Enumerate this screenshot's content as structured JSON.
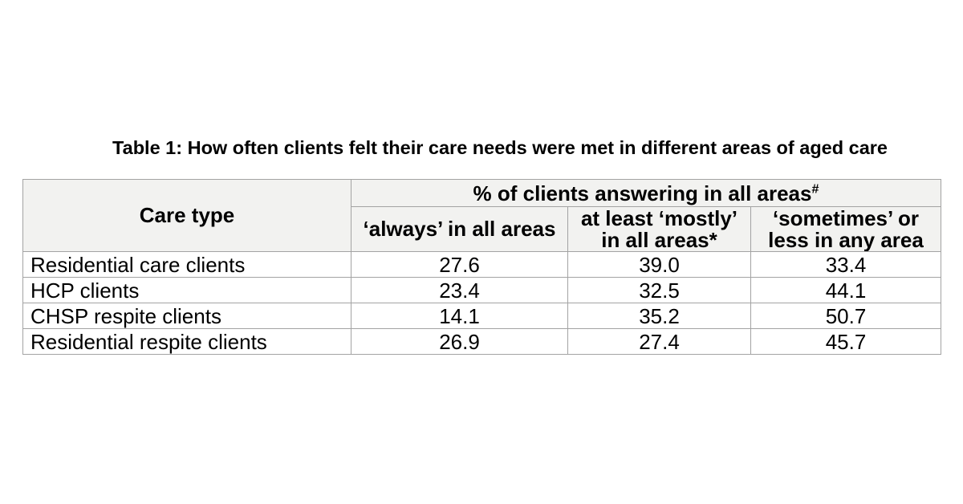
{
  "title": "Table 1: How often clients felt their care needs were met in different areas of aged care",
  "table": {
    "care_type_header": "Care type",
    "group_header": {
      "text": "% of clients answering in all areas",
      "superscript": "#"
    },
    "column_headers": [
      {
        "lines": [
          "‘always’ in all areas"
        ]
      },
      {
        "lines": [
          "at least ‘mostly’",
          "in all areas*"
        ]
      },
      {
        "lines": [
          "‘sometimes’ or",
          "less in any area"
        ]
      }
    ],
    "rows": [
      {
        "care_type": "Residential care clients",
        "values": [
          "27.6",
          "39.0",
          "33.4"
        ]
      },
      {
        "care_type": "HCP clients",
        "values": [
          "23.4",
          "32.5",
          "44.1"
        ]
      },
      {
        "care_type": "CHSP respite clients",
        "values": [
          "14.1",
          "35.2",
          "50.7"
        ]
      },
      {
        "care_type": "Residential respite clients",
        "values": [
          "26.9",
          "27.4",
          "45.7"
        ]
      }
    ]
  },
  "colors": {
    "page_bg": "#ffffff",
    "header_bg": "#f2f2f0",
    "border": "#a3a3a3",
    "text": "#000000"
  }
}
